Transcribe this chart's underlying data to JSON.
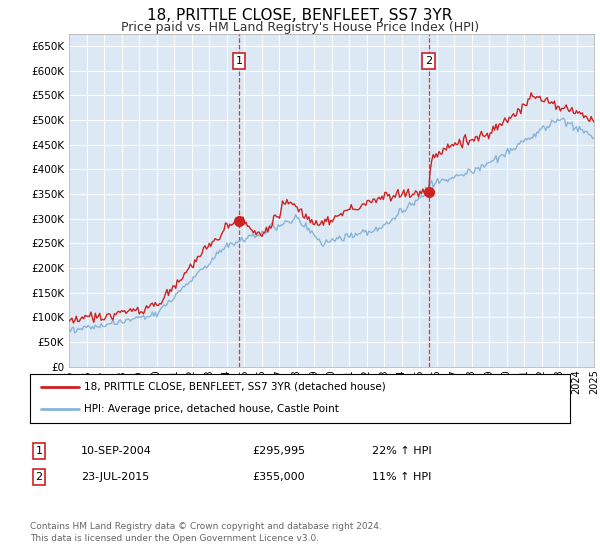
{
  "title": "18, PRITTLE CLOSE, BENFLEET, SS7 3YR",
  "subtitle": "Price paid vs. HM Land Registry's House Price Index (HPI)",
  "ylim": [
    0,
    675000
  ],
  "yticks": [
    0,
    50000,
    100000,
    150000,
    200000,
    250000,
    300000,
    350000,
    400000,
    450000,
    500000,
    550000,
    600000,
    650000
  ],
  "ytick_labels": [
    "£0",
    "£50K",
    "£100K",
    "£150K",
    "£200K",
    "£250K",
    "£300K",
    "£350K",
    "£400K",
    "£450K",
    "£500K",
    "£550K",
    "£600K",
    "£650K"
  ],
  "background_color": "#ffffff",
  "plot_bg_color": "#dce9f5",
  "grid_color": "#ffffff",
  "sale1_date": 2004.72,
  "sale1_price": 295995,
  "sale1_label": "1",
  "sale2_date": 2015.56,
  "sale2_price": 355000,
  "sale2_label": "2",
  "hpi_color": "#8ab4d8",
  "price_color": "#cc2222",
  "dashed_line_color": "#cc2222",
  "legend_label_price": "18, PRITTLE CLOSE, BENFLEET, SS7 3YR (detached house)",
  "legend_label_hpi": "HPI: Average price, detached house, Castle Point",
  "table_row1": [
    "1",
    "10-SEP-2004",
    "£295,995",
    "22% ↑ HPI"
  ],
  "table_row2": [
    "2",
    "23-JUL-2015",
    "£355,000",
    "11% ↑ HPI"
  ],
  "footnote": "Contains HM Land Registry data © Crown copyright and database right 2024.\nThis data is licensed under the Open Government Licence v3.0.",
  "title_fontsize": 11,
  "subtitle_fontsize": 9
}
